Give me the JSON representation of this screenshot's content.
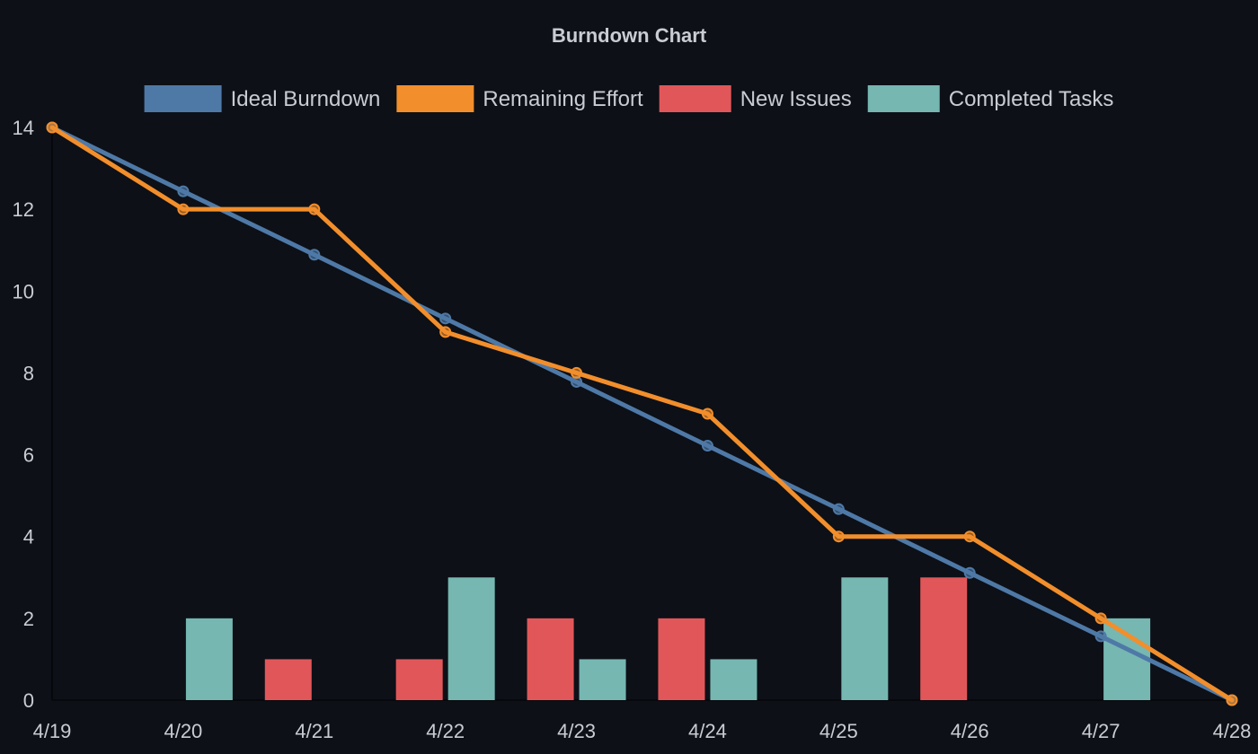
{
  "chart_data": {
    "type": "bar+line",
    "title": "Burndown Chart",
    "xlabel": "",
    "ylabel": "",
    "categories": [
      "4/19",
      "4/20",
      "4/21",
      "4/22",
      "4/23",
      "4/24",
      "4/25",
      "4/26",
      "4/27",
      "4/28"
    ],
    "ylim": [
      0,
      14
    ],
    "yticks": [
      0,
      2,
      4,
      6,
      8,
      10,
      12,
      14
    ],
    "grid": false,
    "legend_position": "top-center",
    "series": [
      {
        "name": "Ideal Burndown",
        "type": "line",
        "color": "#4e79a7",
        "values": [
          14,
          12.44,
          10.89,
          9.33,
          7.78,
          6.22,
          4.67,
          3.11,
          1.56,
          0
        ]
      },
      {
        "name": "Remaining Effort",
        "type": "line",
        "color": "#f28e2b",
        "values": [
          14,
          12,
          12,
          9,
          8,
          7,
          4,
          4,
          2,
          0
        ]
      },
      {
        "name": "New Issues",
        "type": "bar",
        "color": "#e15759",
        "values": [
          0,
          0,
          1,
          1,
          2,
          2,
          0,
          3,
          0,
          0
        ]
      },
      {
        "name": "Completed Tasks",
        "type": "bar",
        "color": "#76b7b2",
        "values": [
          0,
          2,
          0,
          3,
          1,
          1,
          3,
          0,
          2,
          0
        ]
      }
    ]
  }
}
